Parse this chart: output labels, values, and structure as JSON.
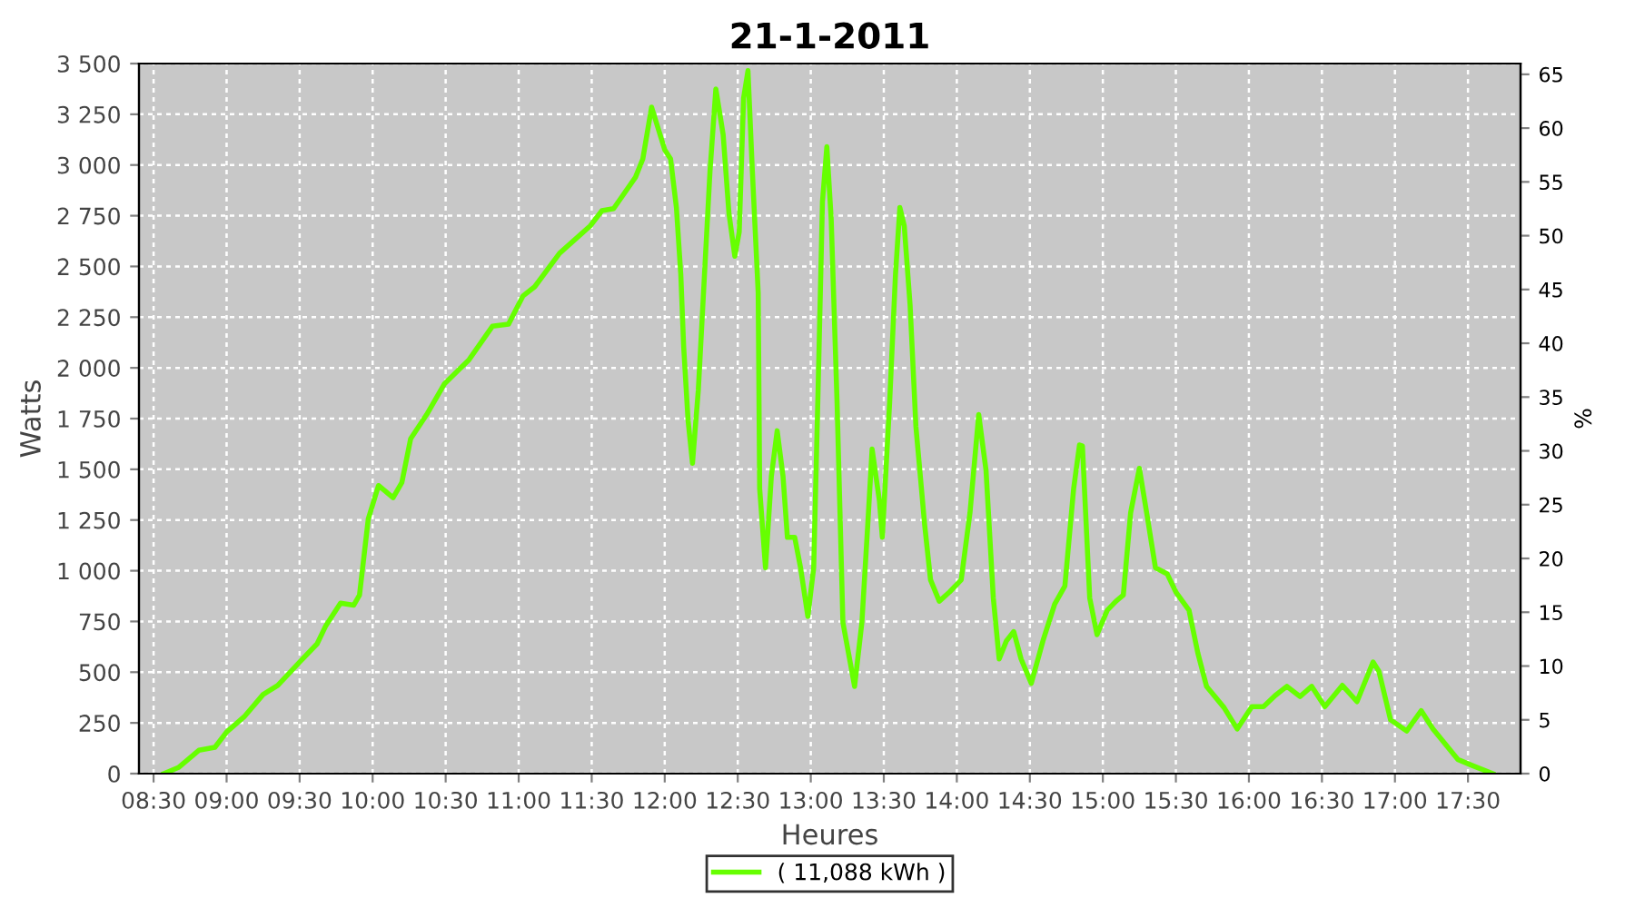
{
  "chart_data": {
    "type": "line",
    "title": "21-1-2011",
    "xlabel": "Heures",
    "ylabel": "Watts",
    "y2label": "%",
    "x": [
      8.57,
      8.67,
      8.81,
      8.92,
      9.0,
      9.12,
      9.25,
      9.35,
      9.5,
      9.62,
      9.68,
      9.78,
      9.87,
      9.91,
      9.97,
      10.04,
      10.14,
      10.2,
      10.26,
      10.37,
      10.49,
      10.66,
      10.82,
      10.93,
      11.03,
      11.11,
      11.28,
      11.49,
      11.57,
      11.65,
      11.8,
      11.85,
      11.91,
      12.0,
      12.04,
      12.08,
      12.11,
      12.13,
      12.16,
      12.19,
      12.23,
      12.27,
      12.31,
      12.35,
      12.4,
      12.44,
      12.48,
      12.51,
      12.54,
      12.57,
      12.6,
      12.64,
      12.65,
      12.69,
      12.73,
      12.77,
      12.81,
      12.84,
      12.89,
      12.93,
      12.98,
      13.02,
      13.05,
      13.08,
      13.11,
      13.14,
      13.18,
      13.22,
      13.3,
      13.35,
      13.39,
      13.42,
      13.47,
      13.49,
      13.54,
      13.58,
      13.61,
      13.64,
      13.68,
      13.72,
      13.78,
      13.82,
      13.88,
      13.95,
      14.03,
      14.09,
      14.15,
      14.2,
      14.25,
      14.29,
      14.34,
      14.39,
      14.44,
      14.51,
      14.59,
      14.67,
      14.74,
      14.8,
      14.84,
      14.86,
      14.91,
      14.96,
      15.03,
      15.09,
      15.14,
      15.19,
      15.25,
      15.3,
      15.36,
      15.44,
      15.5,
      15.59,
      15.65,
      15.71,
      15.83,
      15.92,
      16.02,
      16.1,
      16.18,
      16.26,
      16.35,
      16.43,
      16.52,
      16.64,
      16.74,
      16.85,
      16.89,
      16.97,
      17.08,
      17.18,
      17.26,
      17.43,
      17.53,
      17.67
    ],
    "series": [
      {
        "name": "( 11,088 kWh )",
        "color": "#66ff00",
        "values": [
          0,
          30,
          115,
          130,
          205,
          280,
          390,
          435,
          550,
          640,
          730,
          840,
          830,
          880,
          1255,
          1420,
          1360,
          1435,
          1650,
          1770,
          1920,
          2040,
          2205,
          2215,
          2355,
          2400,
          2565,
          2700,
          2775,
          2785,
          2940,
          3030,
          3285,
          3075,
          3030,
          2790,
          2460,
          2100,
          1740,
          1530,
          1890,
          2430,
          2970,
          3375,
          3150,
          2760,
          2550,
          2670,
          3330,
          3465,
          2970,
          2370,
          1405,
          1015,
          1465,
          1690,
          1465,
          1165,
          1165,
          1015,
          775,
          1015,
          1890,
          2820,
          3090,
          2730,
          1830,
          745,
          430,
          745,
          1225,
          1600,
          1345,
          1165,
          1830,
          2460,
          2790,
          2700,
          2310,
          1710,
          1225,
          955,
          850,
          895,
          955,
          1285,
          1770,
          1495,
          865,
          565,
          655,
          700,
          565,
          445,
          655,
          835,
          925,
          1405,
          1620,
          1615,
          865,
          685,
          805,
          850,
          880,
          1285,
          1505,
          1285,
          1015,
          985,
          895,
          805,
          595,
          430,
          325,
          220,
          330,
          330,
          385,
          430,
          380,
          430,
          330,
          435,
          355,
          550,
          505,
          265,
          210,
          310,
          220,
          70,
          40,
          0
        ]
      }
    ],
    "xlim": [
      8.4,
      17.86
    ],
    "ylim": [
      0,
      3500
    ],
    "y2lim": [
      0,
      66
    ],
    "xticks": [
      {
        "value": 8.5,
        "label": "08:30"
      },
      {
        "value": 9,
        "label": "09:00"
      },
      {
        "value": 9.5,
        "label": "09:30"
      },
      {
        "value": 10,
        "label": "10:00"
      },
      {
        "value": 10.5,
        "label": "10:30"
      },
      {
        "value": 11,
        "label": "11:00"
      },
      {
        "value": 11.5,
        "label": "11:30"
      },
      {
        "value": 12,
        "label": "12:00"
      },
      {
        "value": 12.5,
        "label": "12:30"
      },
      {
        "value": 13,
        "label": "13:00"
      },
      {
        "value": 13.5,
        "label": "13:30"
      },
      {
        "value": 14,
        "label": "14:00"
      },
      {
        "value": 14.5,
        "label": "14:30"
      },
      {
        "value": 15,
        "label": "15:00"
      },
      {
        "value": 15.5,
        "label": "15:30"
      },
      {
        "value": 16,
        "label": "16:00"
      },
      {
        "value": 16.5,
        "label": "16:30"
      },
      {
        "value": 17,
        "label": "17:00"
      },
      {
        "value": 17.5,
        "label": "17:30"
      }
    ],
    "yticks": [
      0,
      250,
      500,
      750,
      {
        "value": 1000,
        "label": "1 000"
      },
      {
        "value": 1250,
        "label": "1 250"
      },
      {
        "value": 1500,
        "label": "1 500"
      },
      {
        "value": 1750,
        "label": "1 750"
      },
      {
        "value": 2000,
        "label": "2 000"
      },
      {
        "value": 2250,
        "label": "2 250"
      },
      {
        "value": 2500,
        "label": "2 500"
      },
      {
        "value": 2750,
        "label": "2 750"
      },
      {
        "value": 3000,
        "label": "3 000"
      },
      {
        "value": 3250,
        "label": "3 250"
      },
      {
        "value": 3500,
        "label": "3 500"
      }
    ],
    "y2ticks": [
      0,
      5,
      10,
      15,
      20,
      25,
      30,
      35,
      40,
      45,
      50,
      55,
      60,
      65
    ],
    "grid": true,
    "legend": "bottom",
    "marker": "none",
    "line_style": "solid"
  }
}
